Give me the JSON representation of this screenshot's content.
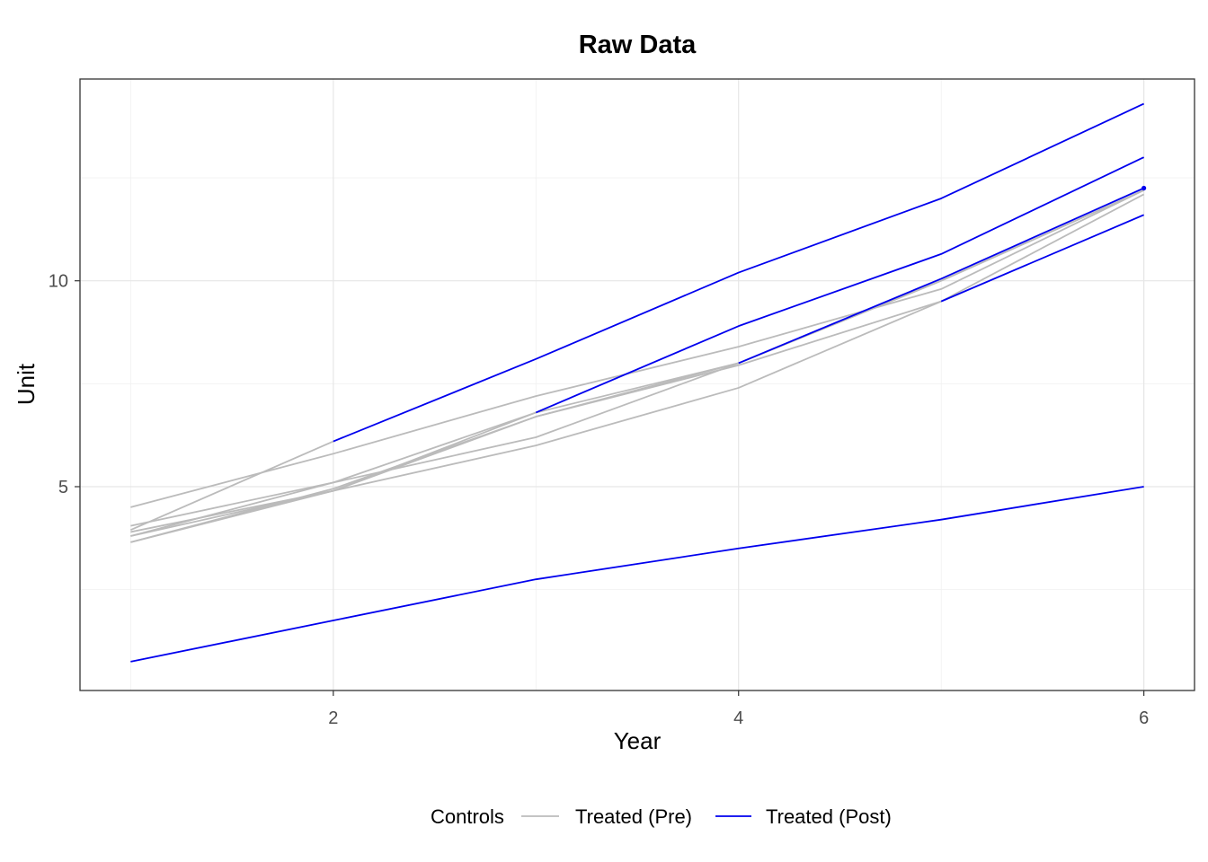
{
  "chart_data": {
    "type": "line",
    "title": "Raw Data",
    "xlabel": "Year",
    "ylabel": "Unit",
    "xlim": [
      0.75,
      6.25
    ],
    "ylim": [
      0.05,
      14.9
    ],
    "x_ticks": [
      2,
      4,
      6
    ],
    "y_ticks": [
      5,
      10
    ],
    "x_minor_ticks": [
      1,
      3,
      5
    ],
    "y_minor_ticks": [
      2.5,
      7.5,
      12.5
    ],
    "grid": true,
    "legend_position": "bottom",
    "colors": {
      "Controls": "#bbbbbb",
      "Treated (Pre)": "#bbbbbb",
      "Treated (Post)": "#0000ee"
    },
    "legend": [
      "Controls",
      "Treated (Pre)",
      "Treated (Post)"
    ],
    "series": [
      {
        "group": "Controls",
        "x": [
          1,
          2,
          3,
          4,
          5,
          6
        ],
        "y": [
          4.5,
          5.8,
          7.2,
          8.4,
          9.8,
          12.2
        ]
      },
      {
        "group": "Controls",
        "x": [
          1,
          2,
          3,
          4,
          5,
          6
        ],
        "y": [
          3.9,
          4.9,
          6.0,
          7.4,
          9.5,
          12.1
        ]
      },
      {
        "group": "Controls",
        "x": [
          1,
          2,
          3,
          4,
          5,
          6
        ],
        "y": [
          3.8,
          5.1,
          6.2,
          8.0,
          10.0,
          12.2
        ]
      },
      {
        "group": "Controls",
        "x": [
          1,
          2,
          3,
          4,
          5,
          6
        ],
        "y": [
          3.65,
          4.9,
          6.8,
          8.0,
          10.0,
          12.2
        ]
      },
      {
        "group": "Treated (Pre)",
        "x": [
          1,
          2
        ],
        "y": [
          3.95,
          6.1
        ]
      },
      {
        "group": "Treated (Post)",
        "x": [
          2,
          3,
          4,
          5,
          6
        ],
        "y": [
          6.1,
          8.1,
          10.2,
          12.0,
          14.3
        ]
      },
      {
        "group": "Treated (Pre)",
        "x": [
          1,
          2,
          3
        ],
        "y": [
          4.05,
          5.1,
          6.8
        ]
      },
      {
        "group": "Treated (Post)",
        "x": [
          3,
          4,
          5,
          6
        ],
        "y": [
          6.8,
          8.9,
          10.65,
          13.0
        ]
      },
      {
        "group": "Treated (Pre)",
        "x": [
          1,
          2,
          3,
          4
        ],
        "y": [
          3.8,
          4.9,
          6.7,
          8.0
        ]
      },
      {
        "group": "Treated (Post)",
        "x": [
          4,
          5,
          6
        ],
        "y": [
          8.0,
          10.05,
          12.25
        ]
      },
      {
        "group": "Treated (Pre)",
        "x": [
          1,
          2,
          3,
          4,
          5
        ],
        "y": [
          3.65,
          4.95,
          6.7,
          7.95,
          9.5
        ]
      },
      {
        "group": "Treated (Post)",
        "x": [
          5,
          6
        ],
        "y": [
          9.5,
          11.6
        ]
      },
      {
        "group": "Treated (Post)",
        "x": [
          1,
          2,
          3,
          4,
          5,
          6
        ],
        "y": [
          0.75,
          1.75,
          2.75,
          3.5,
          4.2,
          5.0
        ]
      }
    ],
    "points": [
      {
        "group": "Treated (Post)",
        "x": 6,
        "y": 12.25
      }
    ]
  }
}
